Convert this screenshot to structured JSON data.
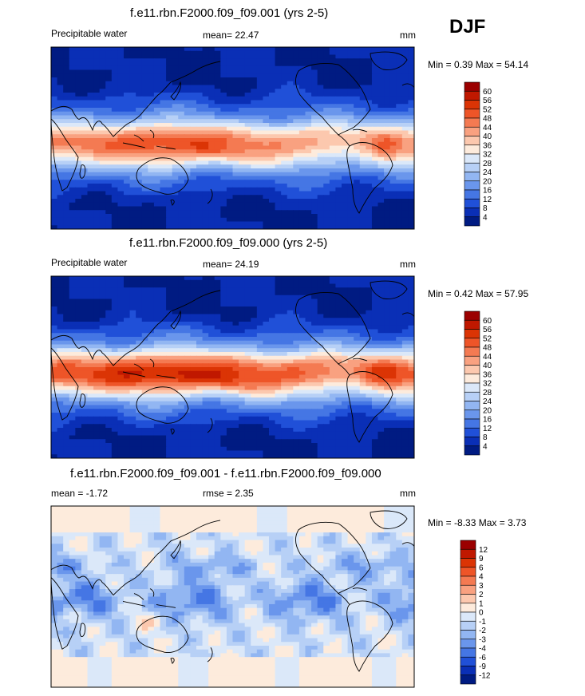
{
  "season": "DJF",
  "chart_data": [
    {
      "type": "heatmap",
      "title": "f.e11.rbn.F2000.f09_f09.001 (yrs 2-5)",
      "variable": "Precipitable water",
      "mean_label": "mean=",
      "mean": "22.47",
      "units": "mm",
      "min_label": "Min =",
      "min": "0.39",
      "max_label": "Max =",
      "max": "54.14",
      "colorbar_ticks": [
        "60",
        "56",
        "52",
        "48",
        "44",
        "40",
        "36",
        "32",
        "28",
        "24",
        "20",
        "16",
        "12",
        "8",
        "4"
      ],
      "colorbar_colors": [
        "#9b0000",
        "#c01800",
        "#db3405",
        "#ee5528",
        "#f47a52",
        "#f9a180",
        "#fcc8ae",
        "#fdebdc",
        "#dbe8f9",
        "#b7d0f6",
        "#92b6f2",
        "#6a96ec",
        "#4576e4",
        "#2050d8",
        "#0a2fb6",
        "#001b82"
      ],
      "fields": {
        "tropical": 44,
        "subtropical": 30,
        "midlat": 16,
        "polar": 4
      }
    },
    {
      "type": "heatmap",
      "title": "f.e11.rbn.F2000.f09_f09.000 (yrs 2-5)",
      "variable": "Precipitable water",
      "mean_label": "mean=",
      "mean": "24.19",
      "units": "mm",
      "min_label": "Min =",
      "min": "0.42",
      "max_label": "Max =",
      "max": "57.95",
      "colorbar_ticks": [
        "60",
        "56",
        "52",
        "48",
        "44",
        "40",
        "36",
        "32",
        "28",
        "24",
        "20",
        "16",
        "12",
        "8",
        "4"
      ],
      "colorbar_colors": [
        "#9b0000",
        "#c01800",
        "#db3405",
        "#ee5528",
        "#f47a52",
        "#f9a180",
        "#fcc8ae",
        "#fdebdc",
        "#dbe8f9",
        "#b7d0f6",
        "#92b6f2",
        "#6a96ec",
        "#4576e4",
        "#2050d8",
        "#0a2fb6",
        "#001b82"
      ],
      "fields": {
        "tropical": 50,
        "subtropical": 32,
        "midlat": 18,
        "polar": 4
      }
    },
    {
      "type": "heatmap",
      "title": "f.e11.rbn.F2000.f09_f09.001 - f.e11.rbn.F2000.f09_f09.000",
      "variable": "",
      "mean_label": "mean =",
      "mean": "-1.72",
      "rmse_label": "rmse =",
      "rmse": "2.35",
      "units": "mm",
      "min_label": "Min =",
      "min": "-8.33",
      "max_label": "Max =",
      "max": "3.73",
      "colorbar_ticks": [
        "12",
        "9",
        "6",
        "4",
        "3",
        "2",
        "1",
        "0",
        "-1",
        "-2",
        "-3",
        "-4",
        "-6",
        "-9",
        "-12"
      ],
      "colorbar_colors": [
        "#9b0000",
        "#c01800",
        "#db3405",
        "#ee5528",
        "#f47a52",
        "#f9a180",
        "#fcc8ae",
        "#fdebdc",
        "#dbe8f9",
        "#b7d0f6",
        "#92b6f2",
        "#6a96ec",
        "#4576e4",
        "#2050d8",
        "#0a2fb6",
        "#001b82"
      ]
    }
  ]
}
